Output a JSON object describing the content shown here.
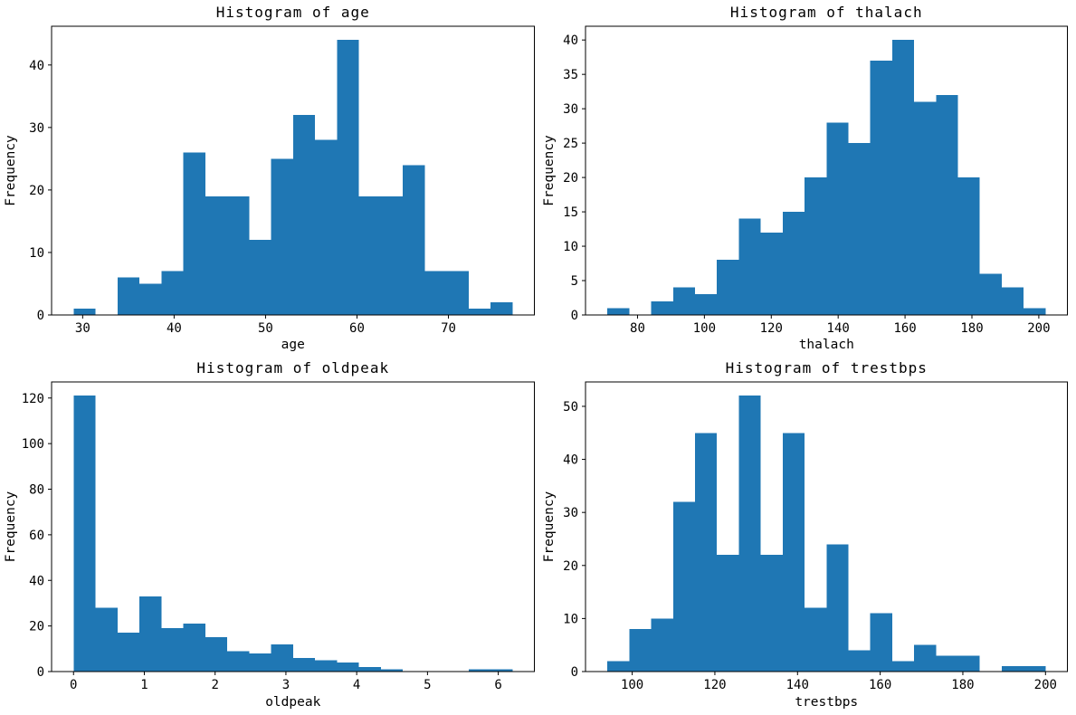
{
  "figure": {
    "background_color": "#ffffff",
    "bar_color": "#1f77b4",
    "axis_color": "#000000",
    "text_color": "#000000"
  },
  "chart_data": [
    {
      "type": "bar",
      "subtype": "histogram",
      "title": "Histogram of age",
      "xlabel": "age",
      "ylabel": "Frequency",
      "bin_start": 29,
      "bin_width": 2.4,
      "counts": [
        1,
        0,
        6,
        5,
        7,
        26,
        19,
        19,
        12,
        25,
        32,
        28,
        44,
        19,
        19,
        24,
        7,
        7,
        1,
        2
      ],
      "xlim": [
        26.6,
        79.4
      ],
      "ylim": [
        0,
        46.2
      ],
      "xticks": [
        30,
        40,
        50,
        60,
        70
      ],
      "yticks": [
        0,
        10,
        20,
        30,
        40
      ],
      "grid": false,
      "legend_position": "none"
    },
    {
      "type": "bar",
      "subtype": "histogram",
      "title": "Histogram of thalach",
      "xlabel": "thalach",
      "ylabel": "Frequency",
      "bin_start": 71,
      "bin_width": 6.55,
      "counts": [
        1,
        0,
        2,
        4,
        3,
        8,
        14,
        12,
        15,
        20,
        28,
        25,
        37,
        40,
        31,
        32,
        20,
        6,
        4,
        1
      ],
      "xlim": [
        64.45,
        208.55
      ],
      "ylim": [
        0,
        42
      ],
      "xticks": [
        80,
        100,
        120,
        140,
        160,
        180,
        200
      ],
      "yticks": [
        0,
        5,
        10,
        15,
        20,
        25,
        30,
        35,
        40
      ],
      "grid": false,
      "legend_position": "none"
    },
    {
      "type": "bar",
      "subtype": "histogram",
      "title": "Histogram of oldpeak",
      "xlabel": "oldpeak",
      "ylabel": "Frequency",
      "bin_start": 0,
      "bin_width": 0.31,
      "counts": [
        121,
        28,
        17,
        33,
        19,
        21,
        15,
        9,
        8,
        12,
        6,
        5,
        4,
        2,
        1,
        0,
        0,
        0,
        1,
        1
      ],
      "xlim": [
        -0.31,
        6.51
      ],
      "ylim": [
        0,
        127.05
      ],
      "xticks": [
        0,
        1,
        2,
        3,
        4,
        5,
        6
      ],
      "yticks": [
        0,
        20,
        40,
        60,
        80,
        100,
        120
      ],
      "grid": false,
      "legend_position": "none"
    },
    {
      "type": "bar",
      "subtype": "histogram",
      "title": "Histogram of trestbps",
      "xlabel": "trestbps",
      "ylabel": "Frequency",
      "bin_start": 94,
      "bin_width": 5.3,
      "counts": [
        2,
        8,
        10,
        32,
        45,
        22,
        52,
        22,
        45,
        12,
        24,
        4,
        11,
        2,
        5,
        3,
        3,
        0,
        1,
        1
      ],
      "xlim": [
        88.7,
        205.3
      ],
      "ylim": [
        0,
        54.6
      ],
      "xticks": [
        100,
        120,
        140,
        160,
        180,
        200
      ],
      "yticks": [
        0,
        10,
        20,
        30,
        40,
        50
      ],
      "grid": false,
      "legend_position": "none"
    }
  ]
}
